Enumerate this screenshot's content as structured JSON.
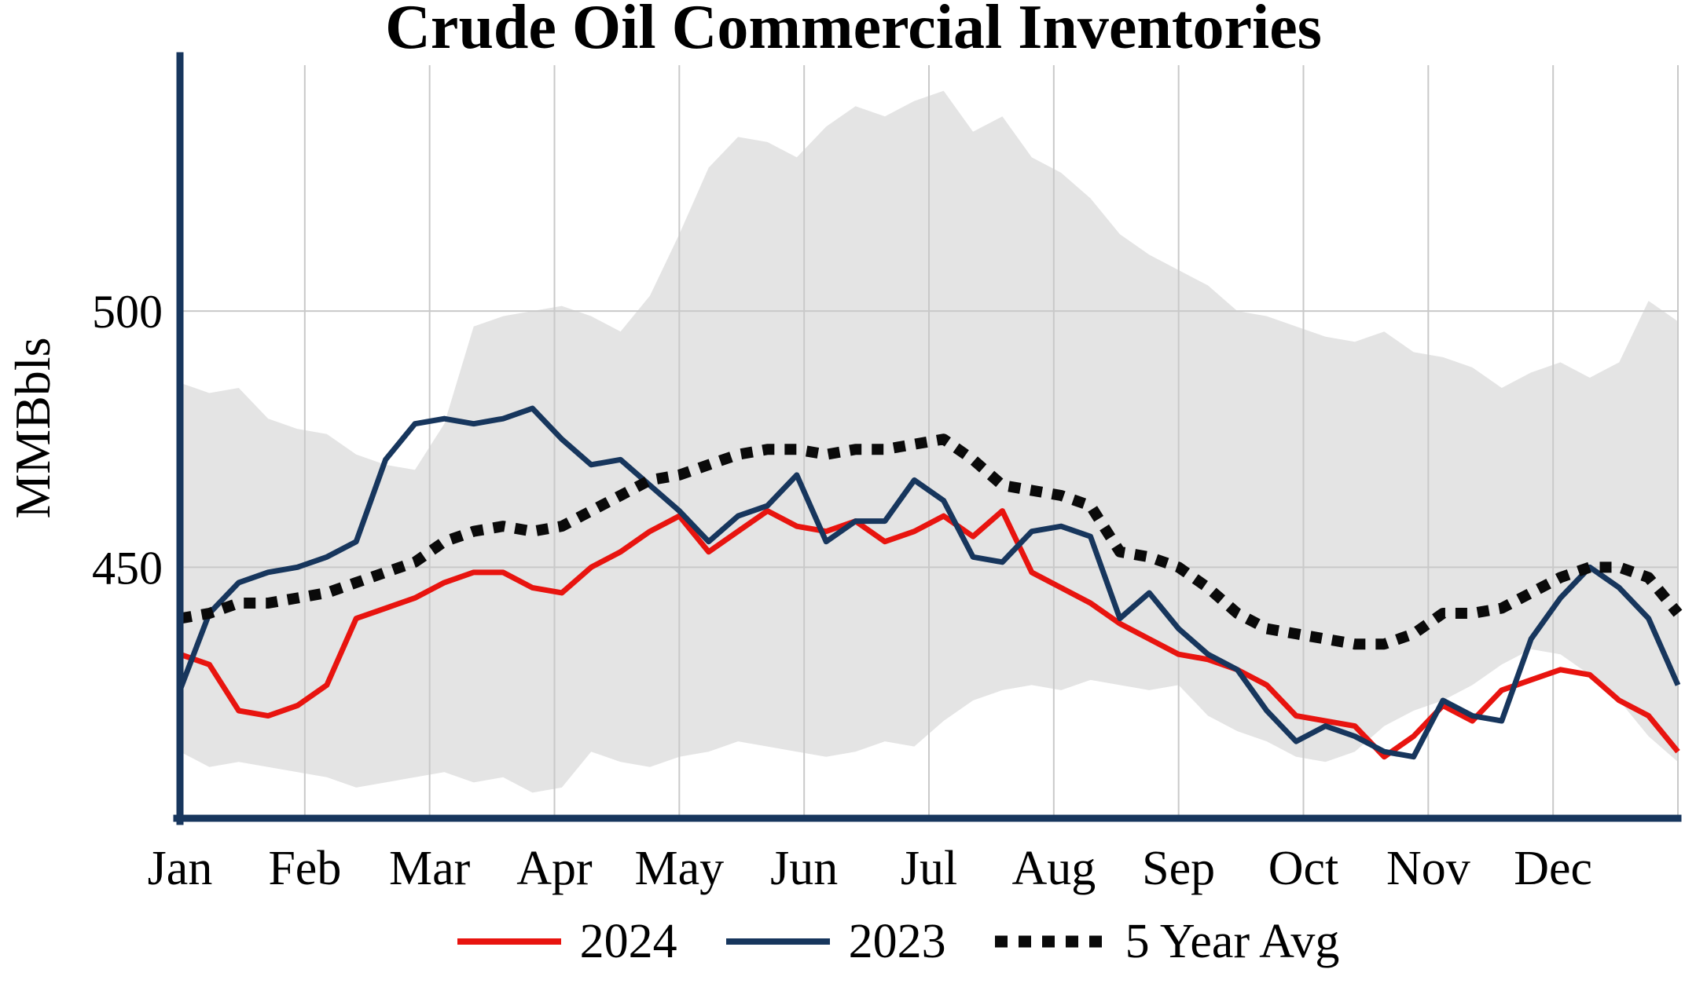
{
  "chart_data": {
    "type": "line",
    "title": "Crude Oil Commercial Inventories",
    "ylabel": "MMBbls",
    "x_months": [
      "Jan",
      "Feb",
      "Mar",
      "Apr",
      "May",
      "Jun",
      "Jul",
      "Aug",
      "Sep",
      "Oct",
      "Nov",
      "Dec"
    ],
    "yticks": [
      450,
      500
    ],
    "ylim": [
      401,
      548
    ],
    "grid": true,
    "legend_position": "bottom",
    "colors": {
      "axis": "#17365d",
      "grid": "#c9c9c9",
      "band": "#e4e4e4"
    },
    "band": {
      "upper": [
        486,
        484,
        485,
        479,
        477,
        476,
        472,
        470,
        469,
        478,
        497,
        499,
        500,
        501,
        499,
        496,
        503,
        515,
        528,
        534,
        533,
        530,
        536,
        540,
        538,
        541,
        543,
        535,
        538,
        530,
        527,
        522,
        515,
        511,
        508,
        505,
        500,
        499,
        497,
        495,
        494,
        496,
        492,
        491,
        489,
        485,
        488,
        490,
        487,
        490,
        502,
        498
      ],
      "lower": [
        414,
        411,
        412,
        411,
        410,
        409,
        407,
        408,
        409,
        410,
        408,
        409,
        406,
        407,
        414,
        412,
        411,
        413,
        414,
        416,
        415,
        414,
        413,
        414,
        416,
        415,
        420,
        424,
        426,
        427,
        426,
        428,
        427,
        426,
        427,
        421,
        418,
        416,
        413,
        412,
        414,
        419,
        422,
        424,
        427,
        431,
        434,
        433,
        429,
        424,
        417,
        412
      ]
    },
    "series": [
      {
        "name": "2024",
        "color": "#e8140f",
        "style": "solid",
        "values": [
          433,
          431,
          422,
          421,
          423,
          427,
          440,
          442,
          444,
          447,
          449,
          449,
          446,
          445,
          450,
          453,
          457,
          460,
          453,
          457,
          461,
          458,
          457,
          459,
          455,
          457,
          460,
          456,
          461,
          449,
          446,
          443,
          439,
          436,
          433,
          432,
          430,
          427,
          421,
          420,
          419,
          413,
          417,
          423,
          420,
          426,
          428,
          430,
          429,
          424,
          421,
          414
        ]
      },
      {
        "name": "2023",
        "color": "#17365d",
        "style": "solid",
        "values": [
          426,
          441,
          447,
          449,
          450,
          452,
          455,
          471,
          478,
          479,
          478,
          479,
          481,
          475,
          470,
          471,
          466,
          461,
          455,
          460,
          462,
          468,
          455,
          459,
          459,
          467,
          463,
          452,
          451,
          457,
          458,
          456,
          440,
          445,
          438,
          433,
          430,
          422,
          416,
          419,
          417,
          414,
          413,
          424,
          421,
          420,
          436,
          444,
          450,
          446,
          440,
          427
        ]
      },
      {
        "name": "5 Year Avg",
        "color": "#0a0a0a",
        "style": "dotted",
        "values": [
          440,
          441,
          443,
          443,
          444,
          445,
          447,
          449,
          451,
          455,
          457,
          458,
          457,
          458,
          461,
          464,
          467,
          468,
          470,
          472,
          473,
          473,
          472,
          473,
          473,
          474,
          475,
          471,
          466,
          465,
          464,
          462,
          453,
          452,
          450,
          446,
          441,
          438,
          437,
          436,
          435,
          435,
          437,
          441,
          441,
          442,
          445,
          448,
          450,
          450,
          448,
          441
        ]
      }
    ]
  }
}
